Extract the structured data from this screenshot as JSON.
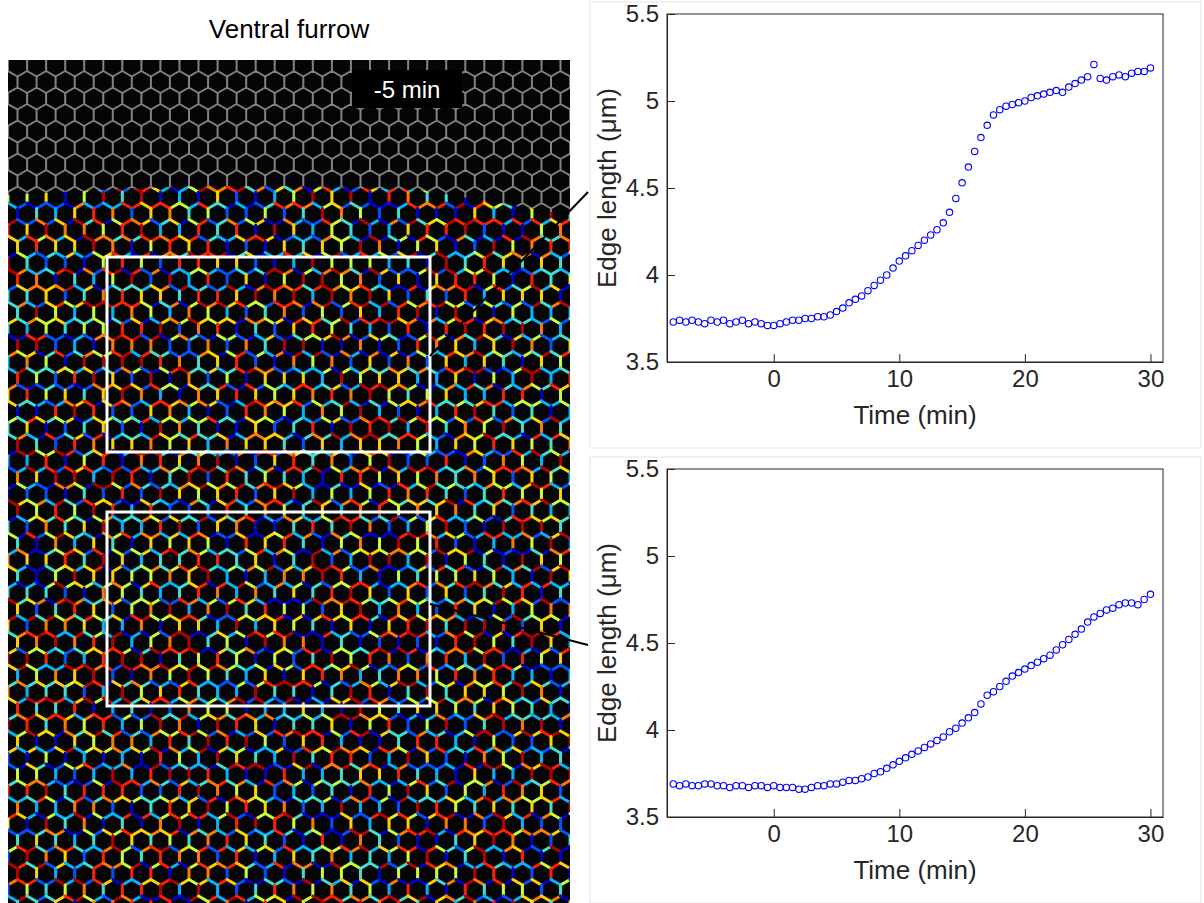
{
  "image": {
    "title": "Ventral furrow",
    "time_label": "-5 min"
  },
  "chart_data": [
    {
      "type": "scatter",
      "x_label": "Time (min)",
      "y_label": "Edge length (μm)",
      "x": [
        -8,
        -7.5,
        -7,
        -6.5,
        -6,
        -5.5,
        -5,
        -4.5,
        -4,
        -3.5,
        -3,
        -2.5,
        -2,
        -1.5,
        -1,
        -0.5,
        0,
        0.5,
        1,
        1.5,
        2,
        2.5,
        3,
        3.5,
        4,
        4.5,
        5,
        5.5,
        6,
        6.5,
        7,
        7.5,
        8,
        8.5,
        9,
        9.5,
        10,
        10.5,
        11,
        11.5,
        12,
        12.5,
        13,
        13.5,
        14,
        14.5,
        15,
        15.5,
        16,
        16.5,
        17,
        17.5,
        18,
        18.5,
        19,
        19.5,
        20,
        20.5,
        21,
        21.5,
        22,
        22.5,
        23,
        23.5,
        24,
        24.5,
        25,
        25.5,
        26,
        26.5,
        27,
        27.5,
        28,
        28.5,
        29,
        29.5,
        30
      ],
      "series": [
        {
          "color": "#0000ff",
          "marker": "circle",
          "values": [
            3.73,
            3.74,
            3.73,
            3.74,
            3.73,
            3.72,
            3.74,
            3.73,
            3.74,
            3.72,
            3.73,
            3.74,
            3.72,
            3.73,
            3.72,
            3.71,
            3.71,
            3.72,
            3.73,
            3.74,
            3.74,
            3.75,
            3.75,
            3.76,
            3.76,
            3.77,
            3.79,
            3.81,
            3.84,
            3.86,
            3.88,
            3.91,
            3.94,
            3.97,
            4.0,
            4.04,
            4.08,
            4.11,
            4.14,
            4.17,
            4.2,
            4.23,
            4.26,
            4.3,
            4.36,
            4.44,
            4.53,
            4.62,
            4.71,
            4.79,
            4.86,
            4.92,
            4.95,
            4.97,
            4.98,
            4.99,
            5.0,
            5.02,
            5.03,
            5.04,
            5.05,
            5.06,
            5.05,
            5.08,
            5.1,
            5.12,
            5.14,
            5.21,
            5.13,
            5.12,
            5.14,
            5.15,
            5.14,
            5.16,
            5.17,
            5.17,
            5.19
          ]
        }
      ],
      "xlim": [
        -8.5,
        31
      ],
      "ylim": [
        3.5,
        5.5
      ],
      "xticks": [
        0,
        10,
        20,
        30
      ],
      "yticks": [
        3.5,
        4,
        4.5,
        5,
        5.5
      ]
    },
    {
      "type": "scatter",
      "x_label": "Time (min)",
      "y_label": "Edge length (μm)",
      "x": [
        -8,
        -7.5,
        -7,
        -6.5,
        -6,
        -5.5,
        -5,
        -4.5,
        -4,
        -3.5,
        -3,
        -2.5,
        -2,
        -1.5,
        -1,
        -0.5,
        0,
        0.5,
        1,
        1.5,
        2,
        2.5,
        3,
        3.5,
        4,
        4.5,
        5,
        5.5,
        6,
        6.5,
        7,
        7.5,
        8,
        8.5,
        9,
        9.5,
        10,
        10.5,
        11,
        11.5,
        12,
        12.5,
        13,
        13.5,
        14,
        14.5,
        15,
        15.5,
        16,
        16.5,
        17,
        17.5,
        18,
        18.5,
        19,
        19.5,
        20,
        20.5,
        21,
        21.5,
        22,
        22.5,
        23,
        23.5,
        24,
        24.5,
        25,
        25.5,
        26,
        26.5,
        27,
        27.5,
        28,
        28.5,
        29,
        29.5,
        30
      ],
      "series": [
        {
          "color": "#0000ff",
          "marker": "circle",
          "values": [
            3.69,
            3.68,
            3.69,
            3.68,
            3.68,
            3.69,
            3.69,
            3.68,
            3.68,
            3.67,
            3.68,
            3.68,
            3.67,
            3.68,
            3.68,
            3.67,
            3.68,
            3.67,
            3.67,
            3.67,
            3.66,
            3.66,
            3.67,
            3.68,
            3.68,
            3.69,
            3.69,
            3.7,
            3.71,
            3.71,
            3.72,
            3.73,
            3.75,
            3.76,
            3.78,
            3.8,
            3.82,
            3.84,
            3.86,
            3.88,
            3.9,
            3.92,
            3.94,
            3.96,
            3.99,
            4.01,
            4.04,
            4.07,
            4.1,
            4.15,
            4.2,
            4.22,
            4.25,
            4.28,
            4.31,
            4.33,
            4.35,
            4.37,
            4.39,
            4.41,
            4.43,
            4.46,
            4.49,
            4.52,
            4.55,
            4.58,
            4.62,
            4.65,
            4.67,
            4.69,
            4.7,
            4.72,
            4.73,
            4.73,
            4.72,
            4.75,
            4.78
          ]
        }
      ],
      "xlim": [
        -8.5,
        31
      ],
      "ylim": [
        3.5,
        5.5
      ],
      "xticks": [
        0,
        10,
        20,
        30
      ],
      "yticks": [
        3.5,
        4,
        4.5,
        5,
        5.5
      ]
    }
  ]
}
